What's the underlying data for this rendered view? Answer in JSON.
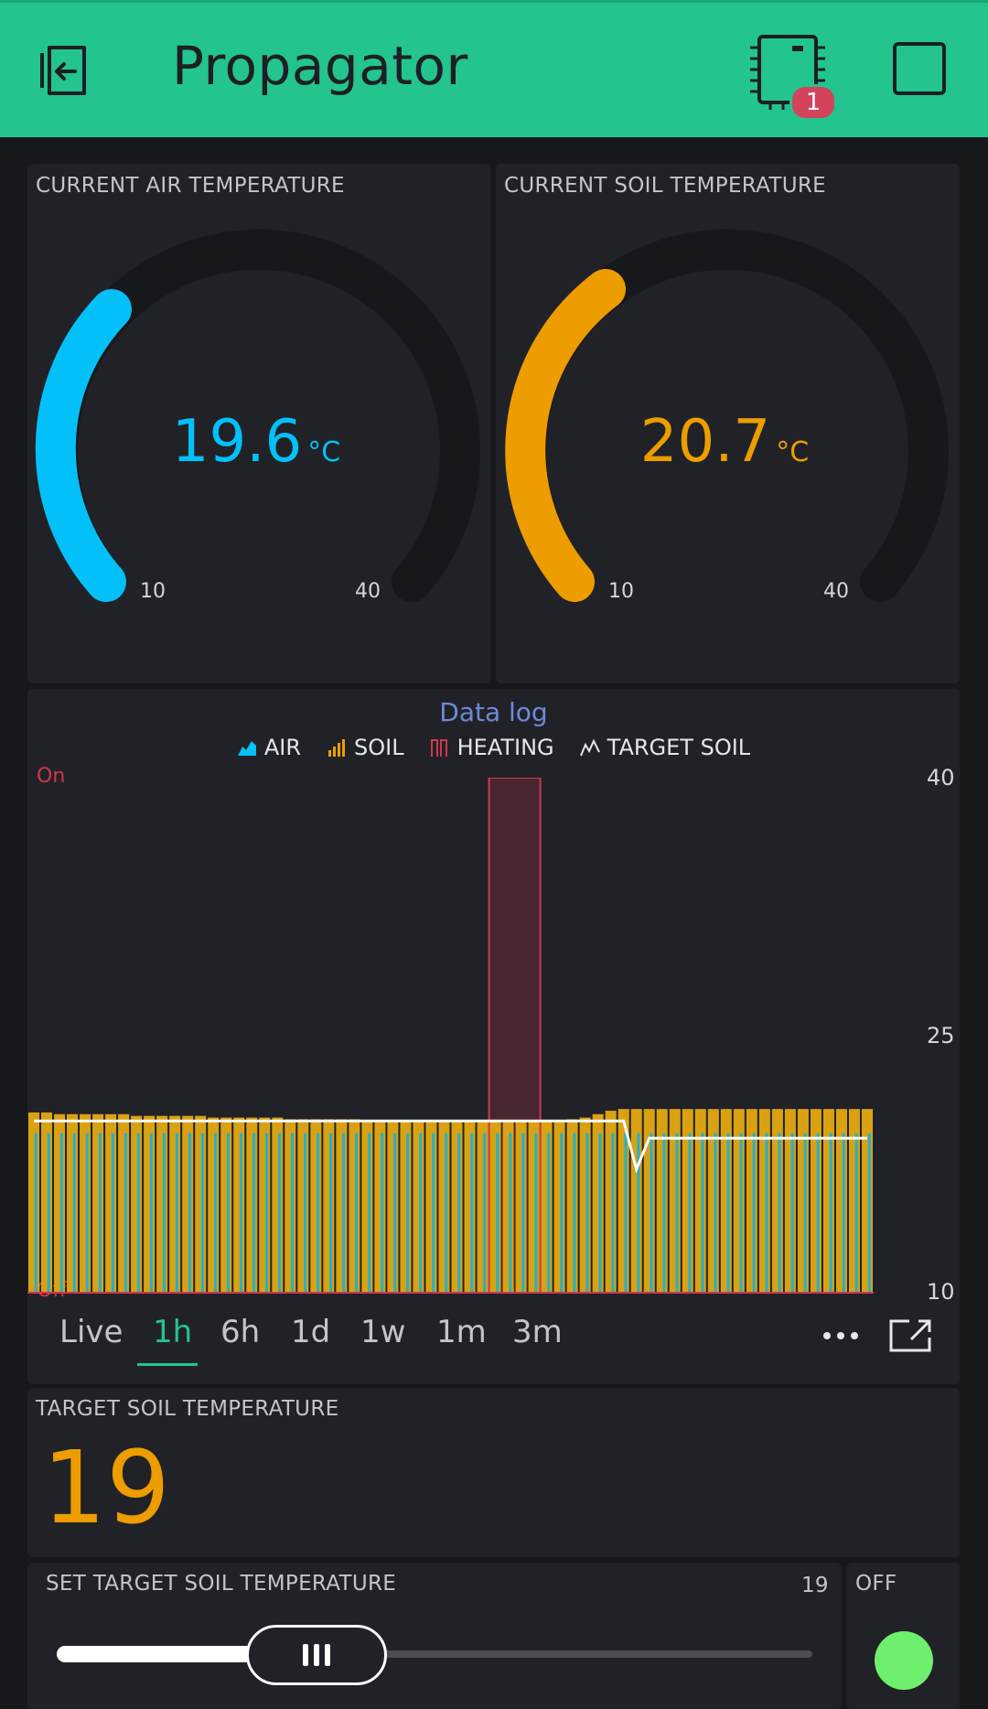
{
  "header": {
    "title": "Propagator",
    "device_badge": "1",
    "bg": "#23c48e"
  },
  "gauges": [
    {
      "label": "CURRENT AIR TEMPERATURE",
      "value": "19.6",
      "unit": "°C",
      "min": "10",
      "max": "40",
      "color": "#04c0f8"
    },
    {
      "label": "CURRENT SOIL TEMPERATURE",
      "value": "20.7",
      "unit": "°C",
      "min": "10",
      "max": "40",
      "color": "#ed9d00"
    }
  ],
  "chart": {
    "title": "Data log",
    "legend": [
      "AIR",
      "SOIL",
      "HEATING",
      "TARGET SOIL"
    ],
    "left_top": "On",
    "left_bottom": "Off",
    "tabs": [
      "Live",
      "1h",
      "6h",
      "1d",
      "1w",
      "1m",
      "3m"
    ],
    "active_tab": "1h"
  },
  "chart_data": {
    "type": "bar",
    "yticks": [
      "40",
      "25",
      "10"
    ],
    "ylim": [
      10,
      40
    ],
    "legend_placement": "top-center",
    "series": [
      {
        "name": "AIR",
        "type": "bar",
        "color": "#27b0c8",
        "values": [
          19.3,
          19.3,
          19.3,
          19.3,
          19.3,
          19.3,
          19.3,
          19.3,
          19.3,
          19.3,
          19.3,
          19.3,
          19.3,
          19.3,
          19.3,
          19.3,
          19.3,
          19.3,
          19.3,
          19.3,
          19.3,
          19.3,
          19.3,
          19.3,
          19.3,
          19.3,
          19.3,
          19.3,
          19.3,
          19.3,
          19.3,
          19.3,
          19.3,
          19.3,
          19.3,
          19.3,
          19.3,
          19.3,
          19.3,
          19.3,
          19.3,
          19.3,
          19.3,
          19.3,
          19.3,
          19.3,
          19.3,
          19.3,
          19.3,
          19.3,
          19.3,
          19.3,
          19.3,
          19.3,
          19.3,
          19.3,
          19.3,
          19.3,
          19.3,
          19.3,
          19.3,
          19.3,
          19.3,
          19.3,
          19.3,
          19.3
        ]
      },
      {
        "name": "SOIL",
        "type": "bar",
        "color": "#d9a213",
        "values": [
          20.5,
          20.5,
          20.4,
          20.4,
          20.4,
          20.4,
          20.4,
          20.4,
          20.3,
          20.3,
          20.3,
          20.3,
          20.3,
          20.3,
          20.2,
          20.2,
          20.2,
          20.2,
          20.2,
          20.2,
          20.1,
          20.1,
          20.1,
          20.1,
          20.1,
          20.1,
          20.0,
          20.0,
          20.0,
          20.0,
          20.0,
          20.0,
          20.0,
          20.0,
          20.0,
          20.0,
          20.0,
          20.0,
          20.0,
          20.0,
          20.0,
          20.0,
          20.1,
          20.2,
          20.4,
          20.6,
          20.7,
          20.7,
          20.7,
          20.7,
          20.7,
          20.7,
          20.7,
          20.7,
          20.7,
          20.7,
          20.7,
          20.7,
          20.7,
          20.7,
          20.7,
          20.7,
          20.7,
          20.7,
          20.7,
          20.7
        ]
      },
      {
        "name": "HEATING",
        "type": "area",
        "color": "#d0374e",
        "on_from_index": 36,
        "on_to_index": 40
      },
      {
        "name": "TARGET SOIL",
        "type": "line",
        "color": "#ffffff",
        "values": [
          20,
          20,
          20,
          20,
          20,
          20,
          20,
          20,
          20,
          20,
          20,
          20,
          20,
          20,
          20,
          20,
          20,
          20,
          20,
          20,
          20,
          20,
          20,
          20,
          20,
          20,
          20,
          20,
          20,
          20,
          20,
          20,
          20,
          20,
          20,
          20,
          20,
          20,
          20,
          20,
          20,
          20,
          20,
          20,
          20,
          20,
          20,
          17.2,
          19,
          19,
          19,
          19,
          19,
          19,
          19,
          19,
          19,
          19,
          19,
          19,
          19,
          19,
          19,
          19,
          19,
          19
        ]
      }
    ]
  },
  "target": {
    "label": "TARGET SOIL TEMPERATURE",
    "value": "19",
    "color": "#ed9d00"
  },
  "slider": {
    "label": "SET TARGET SOIL TEMPERATURE",
    "value": "19",
    "fraction": 0.2,
    "switch_label": "OFF",
    "led_color": "#6ef06e"
  }
}
